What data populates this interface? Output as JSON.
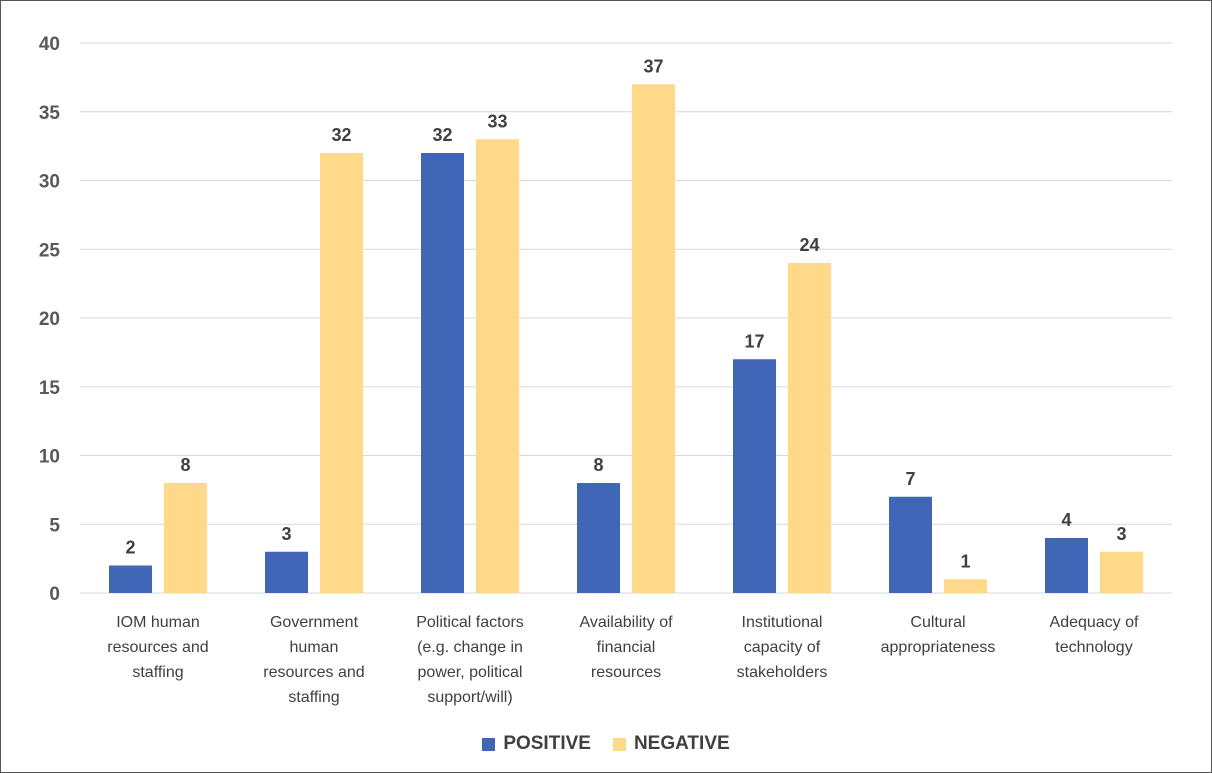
{
  "colors": {
    "positive": "#4166B8",
    "negative": "#FFD98A",
    "grid": "#D9D9D9",
    "axis_text": "#595959"
  },
  "chart_data": {
    "type": "bar",
    "title": "",
    "xlabel": "",
    "ylabel": "",
    "ylim": [
      0,
      40
    ],
    "yticks": [
      0,
      5,
      10,
      15,
      20,
      25,
      30,
      35,
      40
    ],
    "grid": true,
    "legend_position": "bottom",
    "categories": [
      [
        "IOM human",
        "resources and",
        "staffing"
      ],
      [
        "Government",
        "human",
        "resources and",
        "staffing"
      ],
      [
        "Political factors",
        "(e.g. change in",
        "power, political",
        "support/will)"
      ],
      [
        "Availability of",
        "financial",
        "resources"
      ],
      [
        "Institutional",
        "capacity of",
        "stakeholders"
      ],
      [
        "Cultural",
        "appropriateness"
      ],
      [
        "Adequacy of",
        "technology"
      ]
    ],
    "series": [
      {
        "name": "POSITIVE",
        "values": [
          2,
          3,
          32,
          8,
          17,
          7,
          4
        ]
      },
      {
        "name": "NEGATIVE",
        "values": [
          8,
          32,
          33,
          37,
          24,
          1,
          3
        ]
      }
    ]
  }
}
